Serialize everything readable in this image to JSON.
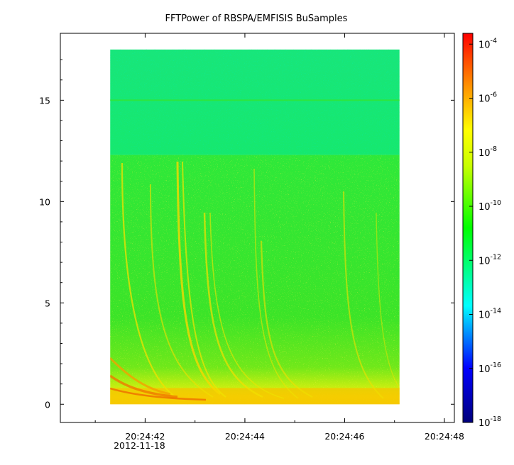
{
  "chart_data": {
    "type": "heatmap",
    "title": "FFTPower of RBSPA/EMFISIS  BuSamples",
    "xlabel": "",
    "ylabel": "",
    "x_range": [
      "20:24:40.3",
      "20:24:48.2"
    ],
    "data_x_range": [
      "20:24:41.3",
      "20:24:47.1"
    ],
    "y_range": [
      -0.9,
      18.3
    ],
    "data_y_range": [
      0,
      17.5
    ],
    "y_ticks": [
      {
        "value": 0,
        "label": "0"
      },
      {
        "value": 5,
        "label": "5"
      },
      {
        "value": 10,
        "label": "10"
      },
      {
        "value": 15,
        "label": "15"
      }
    ],
    "x_ticks": [
      {
        "value": "20:24:42",
        "label": "20:24:42"
      },
      {
        "value": "20:24:44",
        "label": "20:24:44"
      },
      {
        "value": "20:24:46",
        "label": "20:24:46"
      },
      {
        "value": "20:24:48",
        "label": "20:24:48"
      }
    ],
    "x_date_label": "2012-11-18",
    "colorbar": {
      "scale": "log",
      "range": [
        -18,
        -3.6
      ],
      "ticks": [
        {
          "base": "10",
          "exp": "-4"
        },
        {
          "base": "10",
          "exp": "-6"
        },
        {
          "base": "10",
          "exp": "-8"
        },
        {
          "base": "10",
          "exp": "-10"
        },
        {
          "base": "10",
          "exp": "-12"
        },
        {
          "base": "10",
          "exp": "-14"
        },
        {
          "base": "10",
          "exp": "-16"
        },
        {
          "base": "10",
          "exp": "-18"
        }
      ],
      "colormap": [
        "#000080",
        "#0000ff",
        "#00ffff",
        "#00ff00",
        "#ffff00",
        "#ff8000",
        "#ff0000"
      ]
    },
    "features": {
      "upper_band_y": [
        12.3,
        17.5
      ],
      "upper_band_log_power": -12.2,
      "lower_band_y": [
        0,
        12.3
      ],
      "lower_band_log_power": -10.5,
      "horizontal_line_y": 15,
      "low_frequency_band_y": [
        0,
        0.8
      ],
      "low_frequency_log_power": -7.5
    }
  }
}
